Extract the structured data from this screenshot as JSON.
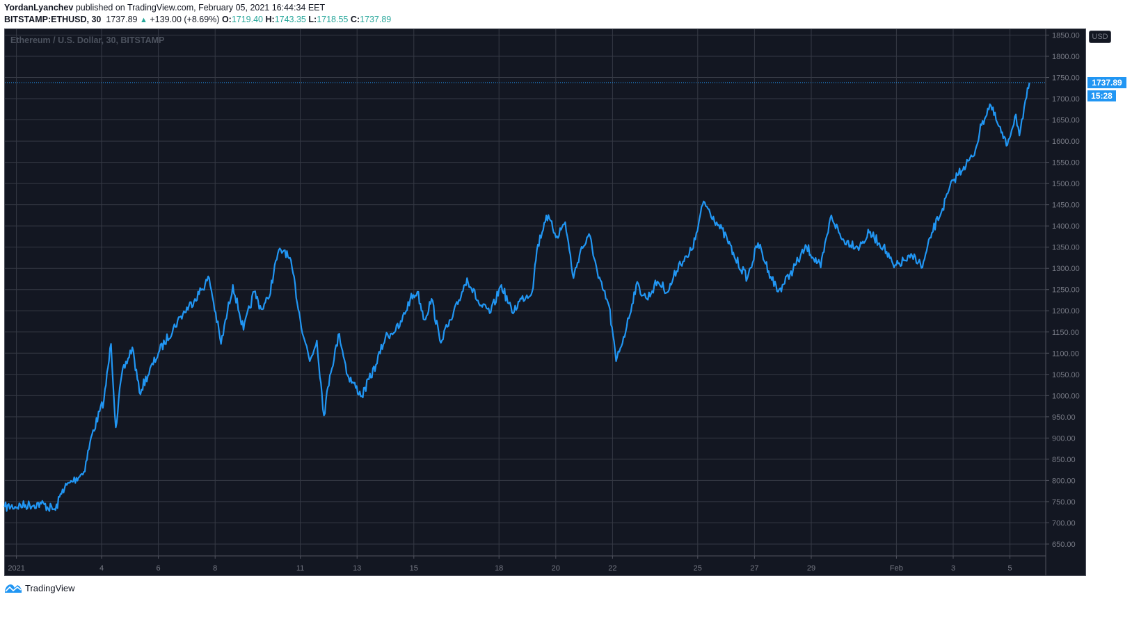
{
  "header": {
    "author": "YordanLyanchev",
    "published_text": "published on TradingView.com, February 05, 2021 16:44:34 EET",
    "symbol": "BITSTAMP:ETHUSD, 30",
    "last": "1737.89",
    "change": "+139.00 (+8.69%)",
    "open_label": "O:",
    "open": "1719.40",
    "high_label": "H:",
    "high": "1743.35",
    "low_label": "L:",
    "low": "1718.55",
    "close_label": "C:",
    "close": "1737.89",
    "up_icon": "triangle-up-icon"
  },
  "chart_legend": "Ethereum / U.S. Dollar, 30, BITSTAMP",
  "currency": "USD",
  "last_price_label": "1737.89",
  "countdown_label": "15:28",
  "footer": {
    "brand": "TradingView",
    "logo_icon": "tradingview-logo-icon"
  },
  "colors": {
    "background": "#131722",
    "grid": "#363a45",
    "line": "#2196f3",
    "up": "#26a69a"
  },
  "chart_data": {
    "type": "line",
    "title": "Ethereum / U.S. Dollar, 30, BITSTAMP",
    "xlabel": "",
    "ylabel": "",
    "ylim": [
      625,
      1860
    ],
    "grid": true,
    "y_ticks": [
      "650.00",
      "700.00",
      "750.00",
      "800.00",
      "850.00",
      "900.00",
      "950.00",
      "1000.00",
      "1050.00",
      "1100.00",
      "1150.00",
      "1200.00",
      "1250.00",
      "1300.00",
      "1350.00",
      "1400.00",
      "1450.00",
      "1500.00",
      "1550.00",
      "1600.00",
      "1650.00",
      "1700.00",
      "1750.00",
      "1800.00",
      "1850.00"
    ],
    "x_ticks": [
      {
        "label": "2021",
        "date": "2021-01-01"
      },
      {
        "label": "4",
        "date": "2021-01-04"
      },
      {
        "label": "6",
        "date": "2021-01-06"
      },
      {
        "label": "8",
        "date": "2021-01-08"
      },
      {
        "label": "11",
        "date": "2021-01-11"
      },
      {
        "label": "13",
        "date": "2021-01-13"
      },
      {
        "label": "15",
        "date": "2021-01-15"
      },
      {
        "label": "18",
        "date": "2021-01-18"
      },
      {
        "label": "20",
        "date": "2021-01-20"
      },
      {
        "label": "22",
        "date": "2021-01-22"
      },
      {
        "label": "25",
        "date": "2021-01-25"
      },
      {
        "label": "27",
        "date": "2021-01-27"
      },
      {
        "label": "29",
        "date": "2021-01-29"
      },
      {
        "label": "Feb",
        "date": "2021-02-01"
      },
      {
        "label": "3",
        "date": "2021-02-03"
      },
      {
        "label": "5",
        "date": "2021-02-05"
      }
    ],
    "last_value": 1737.89,
    "points": [
      [
        "2020-12-31T14:00",
        737
      ],
      [
        "2021-01-01T21:00",
        745
      ],
      [
        "2021-01-02T09:00",
        730
      ],
      [
        "2021-01-02T15:00",
        779
      ],
      [
        "2021-01-03T09:00",
        820
      ],
      [
        "2021-01-03T16:00",
        909
      ],
      [
        "2021-01-04T02:00",
        990
      ],
      [
        "2021-01-04T08:00",
        1122
      ],
      [
        "2021-01-04T12:00",
        925
      ],
      [
        "2021-01-04T17:00",
        1048
      ],
      [
        "2021-01-05T02:00",
        1114
      ],
      [
        "2021-01-05T08:00",
        1007
      ],
      [
        "2021-01-06T01:00",
        1106
      ],
      [
        "2021-01-06T19:00",
        1187
      ],
      [
        "2021-01-07T07:00",
        1228
      ],
      [
        "2021-01-07T19:00",
        1277
      ],
      [
        "2021-01-08T05:00",
        1122
      ],
      [
        "2021-01-08T15:00",
        1261
      ],
      [
        "2021-01-09T00:00",
        1155
      ],
      [
        "2021-01-09T09:00",
        1245
      ],
      [
        "2021-01-09T15:00",
        1204
      ],
      [
        "2021-01-09T21:00",
        1228
      ],
      [
        "2021-01-10T05:00",
        1335
      ],
      [
        "2021-01-10T11:00",
        1343
      ],
      [
        "2021-01-10T17:00",
        1302
      ],
      [
        "2021-01-11T00:00",
        1179
      ],
      [
        "2021-01-11T08:00",
        1081
      ],
      [
        "2021-01-11T14:00",
        1130
      ],
      [
        "2021-01-11T20:00",
        953
      ],
      [
        "2021-01-12T01:00",
        1048
      ],
      [
        "2021-01-12T09:00",
        1146
      ],
      [
        "2021-01-12T16:00",
        1048
      ],
      [
        "2021-01-13T04:00",
        999
      ],
      [
        "2021-01-13T16:00",
        1073
      ],
      [
        "2021-01-14T00:00",
        1138
      ],
      [
        "2021-01-14T12:00",
        1163
      ],
      [
        "2021-01-14T21:00",
        1228
      ],
      [
        "2021-01-15T03:00",
        1245
      ],
      [
        "2021-01-15T09:00",
        1179
      ],
      [
        "2021-01-15T15:00",
        1228
      ],
      [
        "2021-01-15T22:00",
        1130
      ],
      [
        "2021-01-16T08:00",
        1179
      ],
      [
        "2021-01-16T21:00",
        1277
      ],
      [
        "2021-01-17T08:00",
        1212
      ],
      [
        "2021-01-17T17:00",
        1196
      ],
      [
        "2021-01-18T02:00",
        1261
      ],
      [
        "2021-01-18T11:00",
        1196
      ],
      [
        "2021-01-18T19:00",
        1228
      ],
      [
        "2021-01-19T04:00",
        1245
      ],
      [
        "2021-01-19T08:00",
        1343
      ],
      [
        "2021-01-19T16:00",
        1425
      ],
      [
        "2021-01-20T01:00",
        1376
      ],
      [
        "2021-01-20T08:00",
        1409
      ],
      [
        "2021-01-20T15:00",
        1277
      ],
      [
        "2021-01-20T21:00",
        1343
      ],
      [
        "2021-01-21T05:00",
        1376
      ],
      [
        "2021-01-21T12:00",
        1277
      ],
      [
        "2021-01-21T21:00",
        1212
      ],
      [
        "2021-01-22T03:00",
        1081
      ],
      [
        "2021-01-22T12:00",
        1163
      ],
      [
        "2021-01-22T20:00",
        1261
      ],
      [
        "2021-01-23T05:00",
        1228
      ],
      [
        "2021-01-23T14:00",
        1269
      ],
      [
        "2021-01-23T23:00",
        1245
      ],
      [
        "2021-01-24T08:00",
        1310
      ],
      [
        "2021-01-24T16:00",
        1327
      ],
      [
        "2021-01-24T22:00",
        1368
      ],
      [
        "2021-01-25T05:00",
        1458
      ],
      [
        "2021-01-25T16:00",
        1409
      ],
      [
        "2021-01-26T01:00",
        1368
      ],
      [
        "2021-01-26T07:00",
        1327
      ],
      [
        "2021-01-26T18:00",
        1277
      ],
      [
        "2021-01-27T03:00",
        1360
      ],
      [
        "2021-01-27T12:00",
        1294
      ],
      [
        "2021-01-27T20:00",
        1245
      ],
      [
        "2021-01-28T06:00",
        1286
      ],
      [
        "2021-01-28T20:00",
        1351
      ],
      [
        "2021-01-29T08:00",
        1302
      ],
      [
        "2021-01-29T17:00",
        1425
      ],
      [
        "2021-01-30T02:00",
        1368
      ],
      [
        "2021-01-30T17:00",
        1351
      ],
      [
        "2021-01-31T01:00",
        1384
      ],
      [
        "2021-01-31T13:00",
        1351
      ],
      [
        "2021-01-31T22:00",
        1302
      ],
      [
        "2021-02-01T07:00",
        1319
      ],
      [
        "2021-02-01T16:00",
        1327
      ],
      [
        "2021-02-01T22:00",
        1302
      ],
      [
        "2021-02-02T06:00",
        1384
      ],
      [
        "2021-02-02T15:00",
        1441
      ],
      [
        "2021-02-03T00:00",
        1507
      ],
      [
        "2021-02-03T09:00",
        1540
      ],
      [
        "2021-02-03T17:00",
        1564
      ],
      [
        "2021-02-04T00:00",
        1638
      ],
      [
        "2021-02-04T07:00",
        1687
      ],
      [
        "2021-02-04T14:00",
        1638
      ],
      [
        "2021-02-04T21:00",
        1589
      ],
      [
        "2021-02-05T05:00",
        1663
      ],
      [
        "2021-02-05T08:00",
        1613
      ],
      [
        "2021-02-05T11:00",
        1654
      ],
      [
        "2021-02-05T14:00",
        1703
      ],
      [
        "2021-02-05T16:30",
        1737.89
      ]
    ]
  }
}
